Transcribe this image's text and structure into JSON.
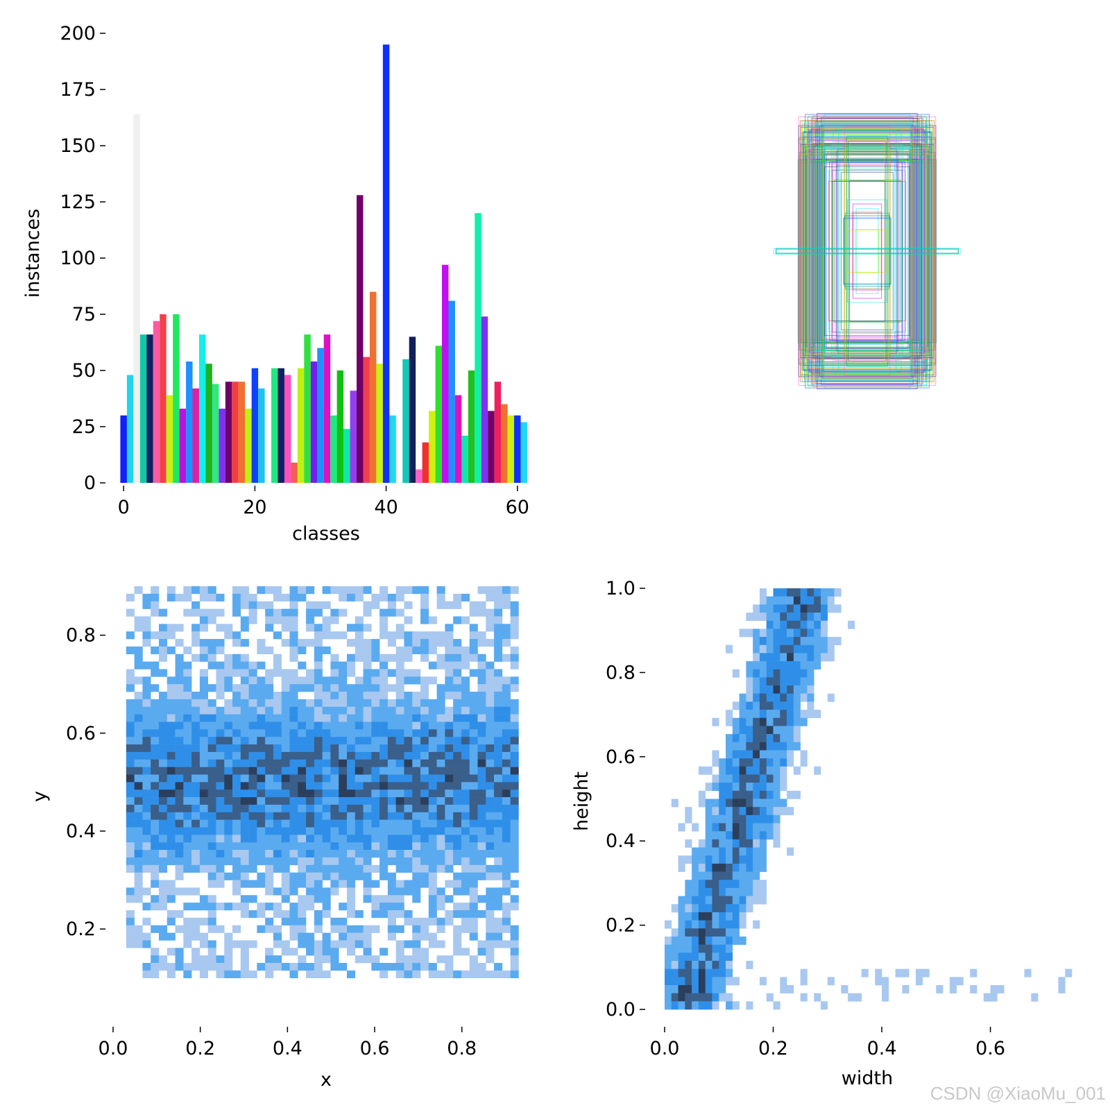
{
  "watermark": "CSDN @XiaoMu_001",
  "chart_data": [
    {
      "id": "class-histogram",
      "type": "bar",
      "xlabel": "classes",
      "ylabel": "instances",
      "xlim": [
        -1.5,
        61.5
      ],
      "ylim": [
        0,
        200
      ],
      "xticks": [
        "0",
        "20",
        "40",
        "60"
      ],
      "yticks": [
        "0",
        "25",
        "50",
        "75",
        "100",
        "125",
        "150",
        "175",
        "200"
      ],
      "categories": [
        0,
        1,
        2,
        3,
        4,
        5,
        6,
        7,
        8,
        9,
        10,
        11,
        12,
        13,
        14,
        15,
        16,
        17,
        18,
        19,
        20,
        21,
        22,
        23,
        24,
        25,
        26,
        27,
        28,
        29,
        30,
        31,
        32,
        33,
        34,
        35,
        36,
        37,
        38,
        39,
        40,
        41,
        42,
        43,
        44,
        45,
        46,
        47,
        48,
        49,
        50,
        51,
        52,
        53,
        54,
        55,
        56,
        57,
        58,
        59,
        60,
        61
      ],
      "values": [
        30,
        48,
        164,
        66,
        66,
        72,
        75,
        39,
        75,
        33,
        54,
        42,
        66,
        53,
        44,
        33,
        45,
        45,
        45,
        33,
        51,
        42,
        0,
        51,
        51,
        48,
        9,
        51,
        66,
        54,
        60,
        66,
        30,
        50,
        24,
        41,
        128,
        56,
        85,
        53,
        195,
        30,
        0,
        55,
        65,
        6,
        18,
        32,
        61,
        97,
        81,
        39,
        21,
        50,
        120,
        74,
        32,
        45,
        35,
        30,
        30,
        27
      ],
      "colors": [
        "#1020ff",
        "#22d4ee",
        "#f0f0f0",
        "#10c8a8",
        "#102060",
        "#ff5aa0",
        "#f4404a",
        "#c8f010",
        "#20e860",
        "#c010e0",
        "#2090ff",
        "#e020a0",
        "#10f0e8",
        "#20b020",
        "#30e880",
        "#8030f0",
        "#700068",
        "#f04040",
        "#f07030",
        "#c0f010",
        "#1040ff",
        "#20c0f0",
        "#ffffff",
        "#20e880",
        "#102060",
        "#ff50c0",
        "#f06050",
        "#c0f010",
        "#30e040",
        "#7020f0",
        "#2090ff",
        "#e010c0",
        "#20e880",
        "#10c010",
        "#10e8a8",
        "#9040f0",
        "#700068",
        "#f04050",
        "#f07030",
        "#c8f010",
        "#1030ff",
        "#20d8f0",
        "#ffffff",
        "#10c8b8",
        "#102058",
        "#ff60c8",
        "#f03030",
        "#d0f010",
        "#30e030",
        "#c010f0",
        "#2090ff",
        "#e010c0",
        "#10e8b0",
        "#20c020",
        "#10f0a8",
        "#8030f0",
        "#700068",
        "#f02060",
        "#f07030",
        "#c8f010",
        "#1030ff",
        "#20d8f0"
      ]
    },
    {
      "id": "box-overlay",
      "type": "other",
      "description": "bounding box shapes overlay"
    },
    {
      "id": "xy-histogram",
      "type": "heatmap",
      "xlabel": "x",
      "ylabel": "y",
      "xlim": [
        0.0,
        0.95
      ],
      "ylim": [
        0.05,
        0.9
      ],
      "xticks": [
        "0.0",
        "0.2",
        "0.4",
        "0.6",
        "0.8"
      ],
      "yticks": [
        "0.2",
        "0.4",
        "0.6",
        "0.8"
      ]
    },
    {
      "id": "wh-histogram",
      "type": "heatmap",
      "xlabel": "width",
      "ylabel": "height",
      "xlim": [
        0.0,
        0.75
      ],
      "ylim": [
        0.0,
        1.0
      ],
      "xticks": [
        "0.0",
        "0.2",
        "0.4",
        "0.6"
      ],
      "yticks": [
        "0.0",
        "0.2",
        "0.4",
        "0.6",
        "0.8",
        "1.0"
      ]
    }
  ]
}
